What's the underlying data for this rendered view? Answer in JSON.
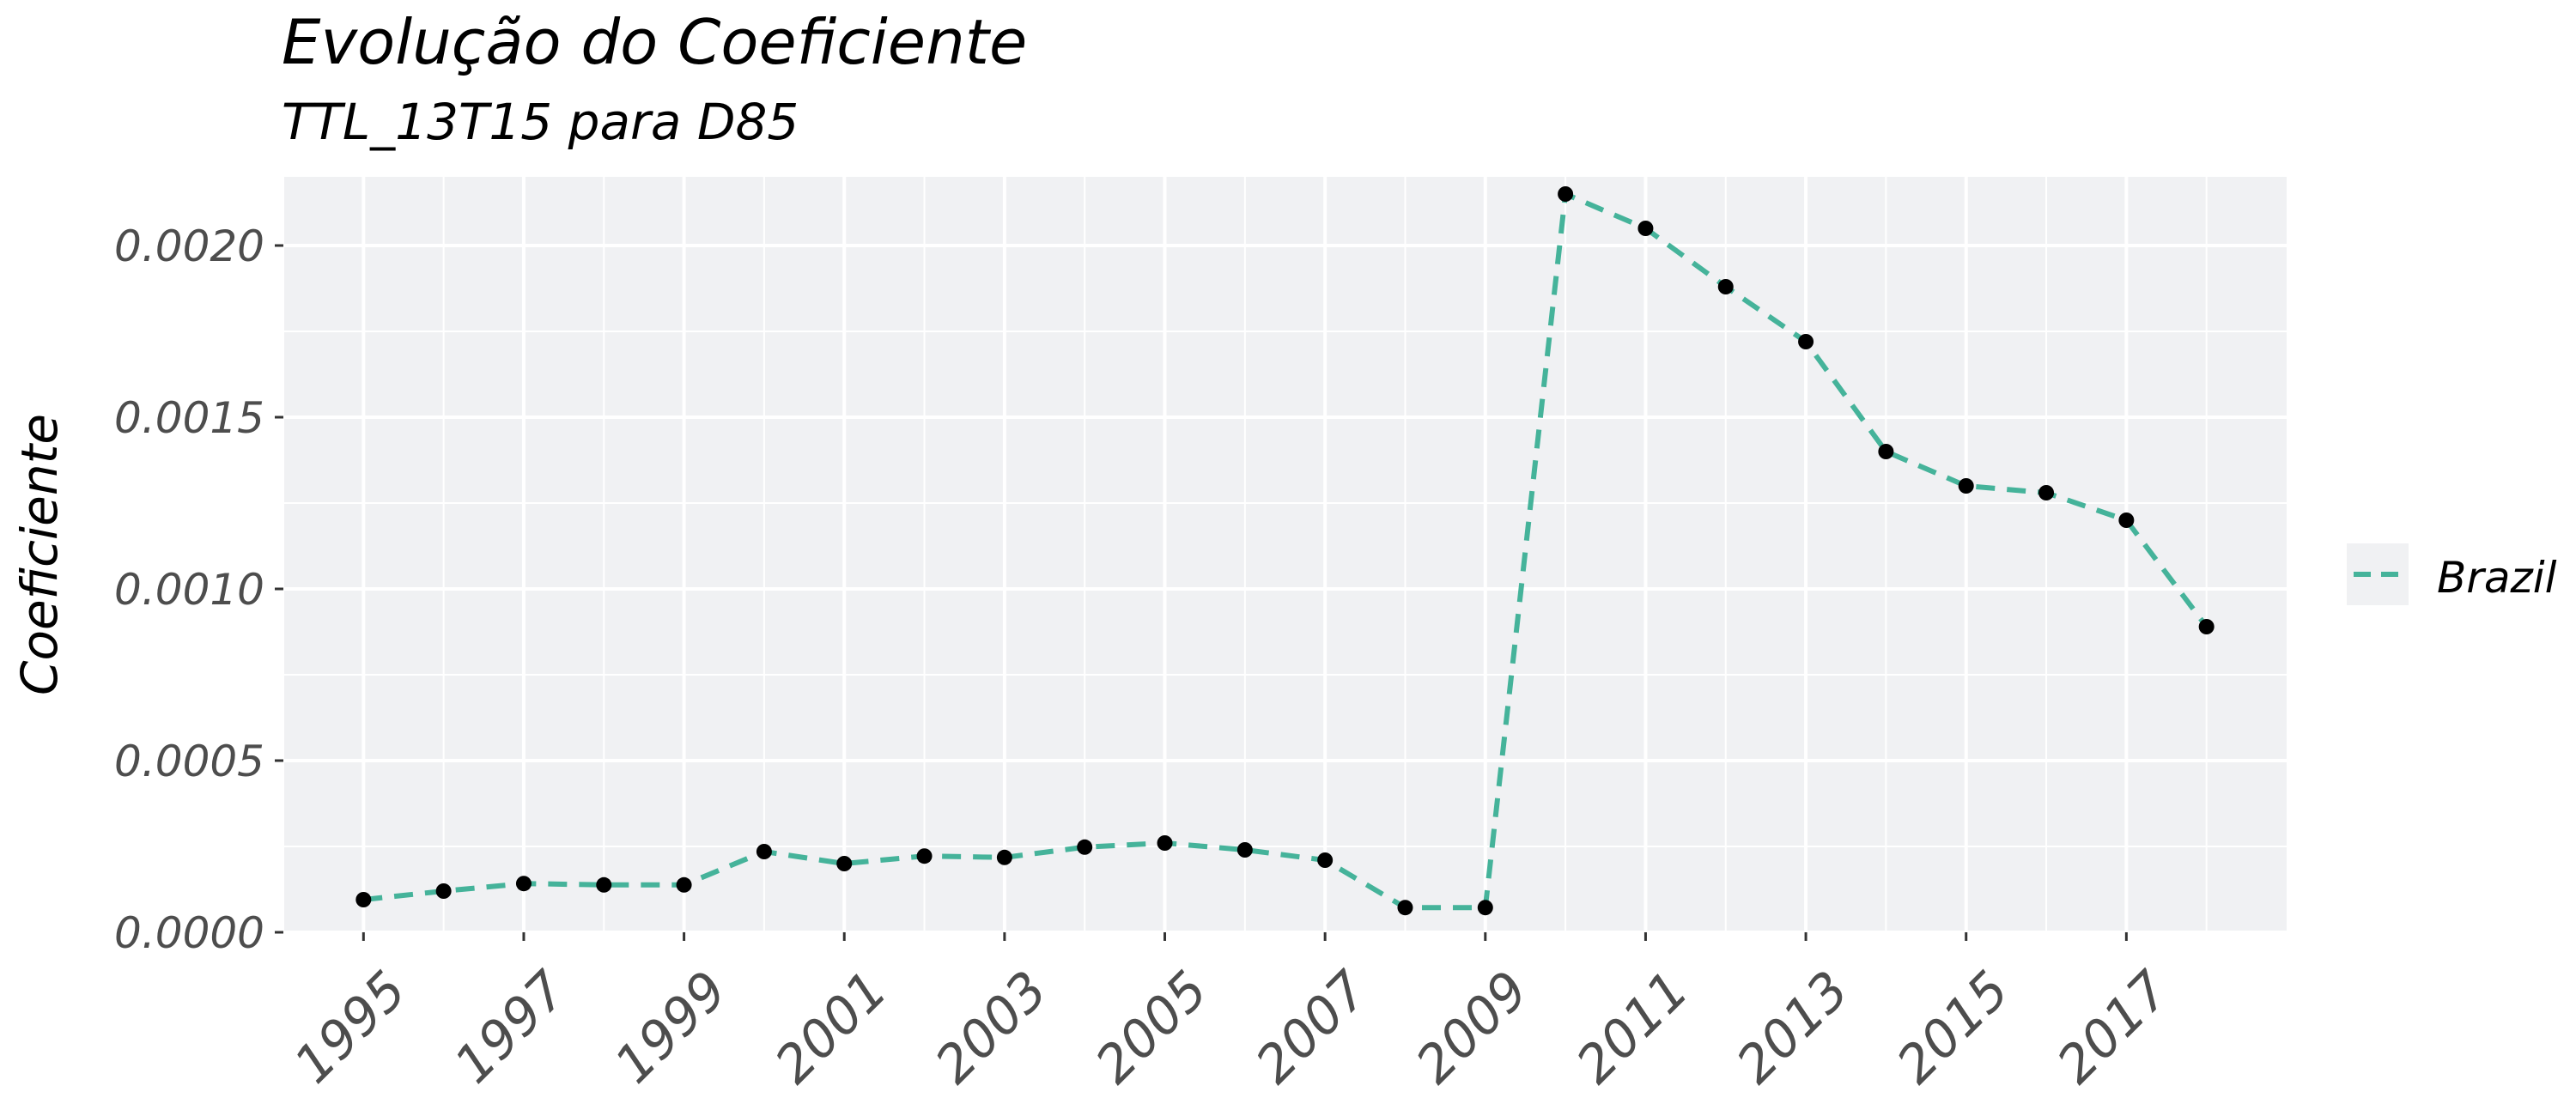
{
  "chart_data": {
    "type": "line",
    "title": "Evolução do Coeficiente",
    "subtitle": "TTL_13T15 para D85",
    "xlabel": "",
    "ylabel": "Coeficiente",
    "x": [
      1995,
      1996,
      1997,
      1998,
      1999,
      2000,
      2001,
      2002,
      2003,
      2004,
      2005,
      2006,
      2007,
      2008,
      2009,
      2010,
      2011,
      2012,
      2013,
      2014,
      2015,
      2016,
      2017,
      2018
    ],
    "x_tick_labels": [
      "1995",
      "1997",
      "1999",
      "2001",
      "2003",
      "2005",
      "2007",
      "2009",
      "2011",
      "2013",
      "2015",
      "2017"
    ],
    "y_tick_labels": [
      "0.0000",
      "0.0005",
      "0.0010",
      "0.0015",
      "0.0020"
    ],
    "ylim": [
      0,
      0.0022
    ],
    "xlim": [
      1994,
      2019
    ],
    "grid": true,
    "legend_position": "right",
    "series": [
      {
        "name": "Brazil",
        "color": "#45b39a",
        "line_style": "dashed",
        "marker_color": "#000000",
        "values": [
          9.5e-05,
          0.00012,
          0.000142,
          0.000138,
          0.000138,
          0.000235,
          0.0002,
          0.000222,
          0.000218,
          0.000248,
          0.00026,
          0.00024,
          0.00021,
          7.2e-05,
          7.2e-05,
          0.00215,
          0.00205,
          0.00188,
          0.00172,
          0.0014,
          0.0013,
          0.00128,
          0.0012,
          0.00089
        ]
      }
    ]
  },
  "colors": {
    "panel_background": "#f0f1f3",
    "grid_major": "#ffffff",
    "legend_key_background": "#f0f1f3"
  }
}
